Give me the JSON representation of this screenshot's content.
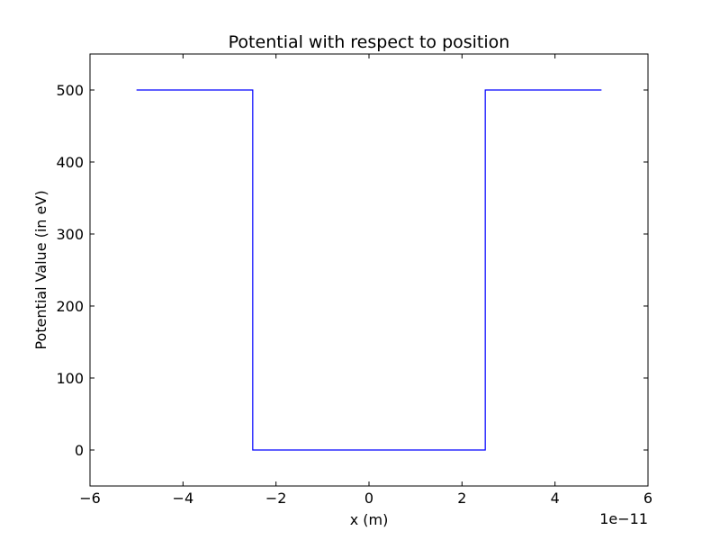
{
  "chart_data": {
    "type": "line",
    "title": "Potential with respect to position",
    "xlabel": "x (m)",
    "ylabel": "Potential Value (in eV)",
    "x_offset_label": "1e−11",
    "xlim": [
      -6,
      6
    ],
    "ylim": [
      -50,
      550
    ],
    "xticks": [
      -6,
      -4,
      -2,
      0,
      2,
      4,
      6
    ],
    "xtick_labels": [
      "−6",
      "−4",
      "−2",
      "0",
      "2",
      "4",
      "6"
    ],
    "yticks": [
      0,
      100,
      200,
      300,
      400,
      500
    ],
    "ytick_labels": [
      "0",
      "100",
      "200",
      "300",
      "400",
      "500"
    ],
    "grid": false,
    "line_color": "#0000ff",
    "series": [
      {
        "x": [
          -5,
          -2.5,
          -2.5,
          2.5,
          2.5,
          5
        ],
        "y": [
          500,
          500,
          0,
          0,
          500,
          500
        ]
      }
    ]
  }
}
